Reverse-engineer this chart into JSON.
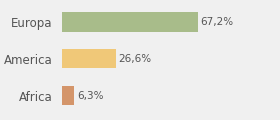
{
  "categories": [
    "Europa",
    "America",
    "Africa"
  ],
  "values": [
    67.2,
    26.6,
    6.3
  ],
  "labels": [
    "67,2%",
    "26,6%",
    "6,3%"
  ],
  "bar_colors": [
    "#a8bc8a",
    "#f0c878",
    "#d4956a"
  ],
  "background_color": "#f0f0f0",
  "xlim": [
    0,
    105
  ],
  "label_fontsize": 7.5,
  "tick_fontsize": 8.5,
  "bar_height": 0.52
}
